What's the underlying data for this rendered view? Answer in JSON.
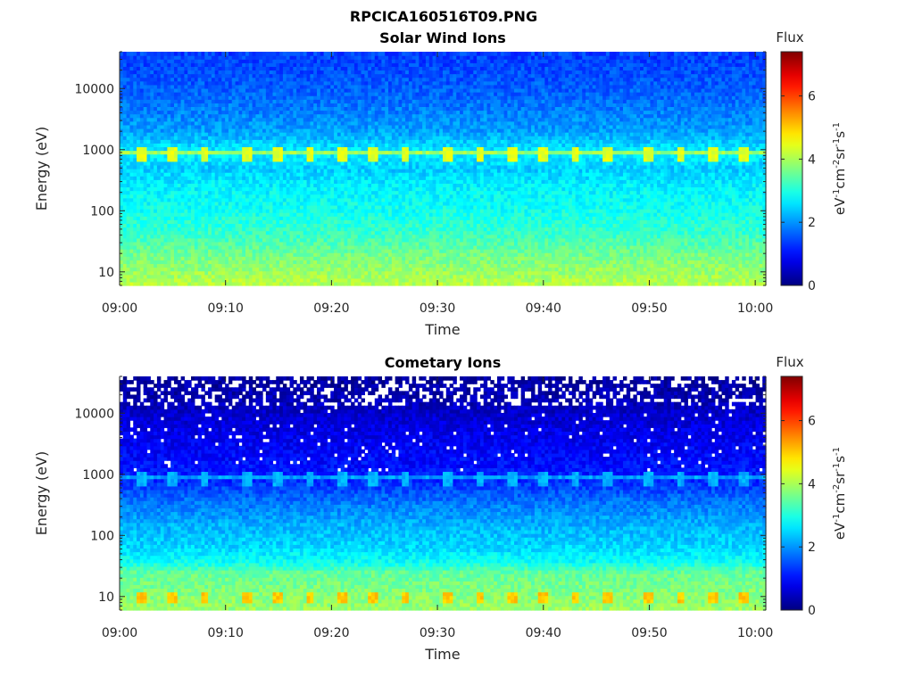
{
  "figure": {
    "title": "RPCICA160516T09.PNG"
  },
  "chart_data": [
    {
      "type": "heatmap",
      "title": "Solar Wind Ions",
      "xlabel": "Time",
      "ylabel": "Energy (eV)",
      "x_tick_labels": [
        "09:00",
        "09:10",
        "09:20",
        "09:30",
        "09:40",
        "09:50",
        "10:00"
      ],
      "x_range": [
        "09:00",
        "10:01"
      ],
      "y_scale": "log",
      "y_tick_values": [
        10,
        100,
        1000,
        10000
      ],
      "y_tick_labels": [
        "10",
        "100",
        "1000",
        "10000"
      ],
      "ylim": [
        6,
        40000
      ],
      "colorbar": {
        "label": "Flux",
        "unit_label": "eV-1cm-2sr-1s-1",
        "range": [
          0,
          7.4
        ],
        "tick_values": [
          0,
          2,
          4,
          6
        ],
        "tick_labels": [
          "0",
          "2",
          "4",
          "6"
        ],
        "colormap": "jet"
      },
      "profile_log_energy_vs_flux": [
        [
          0.8,
          4.1
        ],
        [
          1.0,
          3.9
        ],
        [
          1.3,
          3.6
        ],
        [
          1.6,
          3.2
        ],
        [
          2.0,
          2.9
        ],
        [
          2.4,
          2.7
        ],
        [
          2.7,
          2.4
        ],
        [
          2.92,
          2.7
        ],
        [
          2.95,
          4.2
        ],
        [
          3.0,
          2.6
        ],
        [
          3.3,
          2.1
        ],
        [
          3.7,
          1.8
        ],
        [
          4.0,
          1.6
        ],
        [
          4.5,
          1.4
        ]
      ],
      "periodic_features": [
        {
          "energy_eV": 850,
          "flux": 4.4,
          "times": [
            "09:02",
            "09:05",
            "09:08",
            "09:12",
            "09:15",
            "09:18",
            "09:21",
            "09:24",
            "09:27",
            "09:31",
            "09:34",
            "09:37",
            "09:40",
            "09:43",
            "09:46",
            "09:50",
            "09:53",
            "09:56",
            "09:59"
          ]
        }
      ]
    },
    {
      "type": "heatmap",
      "title": "Cometary Ions",
      "xlabel": "Time",
      "ylabel": "Energy (eV)",
      "x_tick_labels": [
        "09:00",
        "09:10",
        "09:20",
        "09:30",
        "09:40",
        "09:50",
        "10:00"
      ],
      "x_range": [
        "09:00",
        "10:01"
      ],
      "y_scale": "log",
      "y_tick_values": [
        10,
        100,
        1000,
        10000
      ],
      "y_tick_labels": [
        "10",
        "100",
        "1000",
        "10000"
      ],
      "ylim": [
        6,
        40000
      ],
      "colorbar": {
        "label": "Flux",
        "unit_label": "eV-1cm-2sr-1s-1",
        "range": [
          0,
          7.4
        ],
        "tick_values": [
          0,
          2,
          4,
          6
        ],
        "tick_labels": [
          "0",
          "2",
          "4",
          "6"
        ],
        "colormap": "jet"
      },
      "profile_log_energy_vs_flux": [
        [
          0.8,
          3.9
        ],
        [
          1.1,
          3.7
        ],
        [
          1.4,
          3.5
        ],
        [
          1.55,
          2.9
        ],
        [
          1.8,
          2.5
        ],
        [
          2.2,
          2.2
        ],
        [
          2.6,
          1.7
        ],
        [
          2.92,
          1.2
        ],
        [
          2.95,
          2.3
        ],
        [
          3.0,
          1.1
        ],
        [
          3.4,
          0.9
        ],
        [
          3.8,
          0.7
        ],
        [
          4.2,
          0.4
        ],
        [
          4.6,
          0.2
        ]
      ],
      "periodic_features": [
        {
          "energy_eV": 850,
          "flux": 2.2,
          "times": [
            "09:02",
            "09:05",
            "09:08",
            "09:12",
            "09:15",
            "09:18",
            "09:21",
            "09:24",
            "09:27",
            "09:31",
            "09:34",
            "09:37",
            "09:40",
            "09:43",
            "09:46",
            "09:50",
            "09:53",
            "09:56",
            "09:59"
          ]
        },
        {
          "energy_eV": 10,
          "flux": 5.0,
          "times": [
            "09:02",
            "09:05",
            "09:08",
            "09:12",
            "09:15",
            "09:18",
            "09:21",
            "09:24",
            "09:27",
            "09:31",
            "09:34",
            "09:37",
            "09:40",
            "09:43",
            "09:46",
            "09:50",
            "09:53",
            "09:56",
            "09:59"
          ]
        }
      ],
      "missing_data": "scattered empty bins above ~1000 eV, dense above ~10000 eV"
    }
  ]
}
